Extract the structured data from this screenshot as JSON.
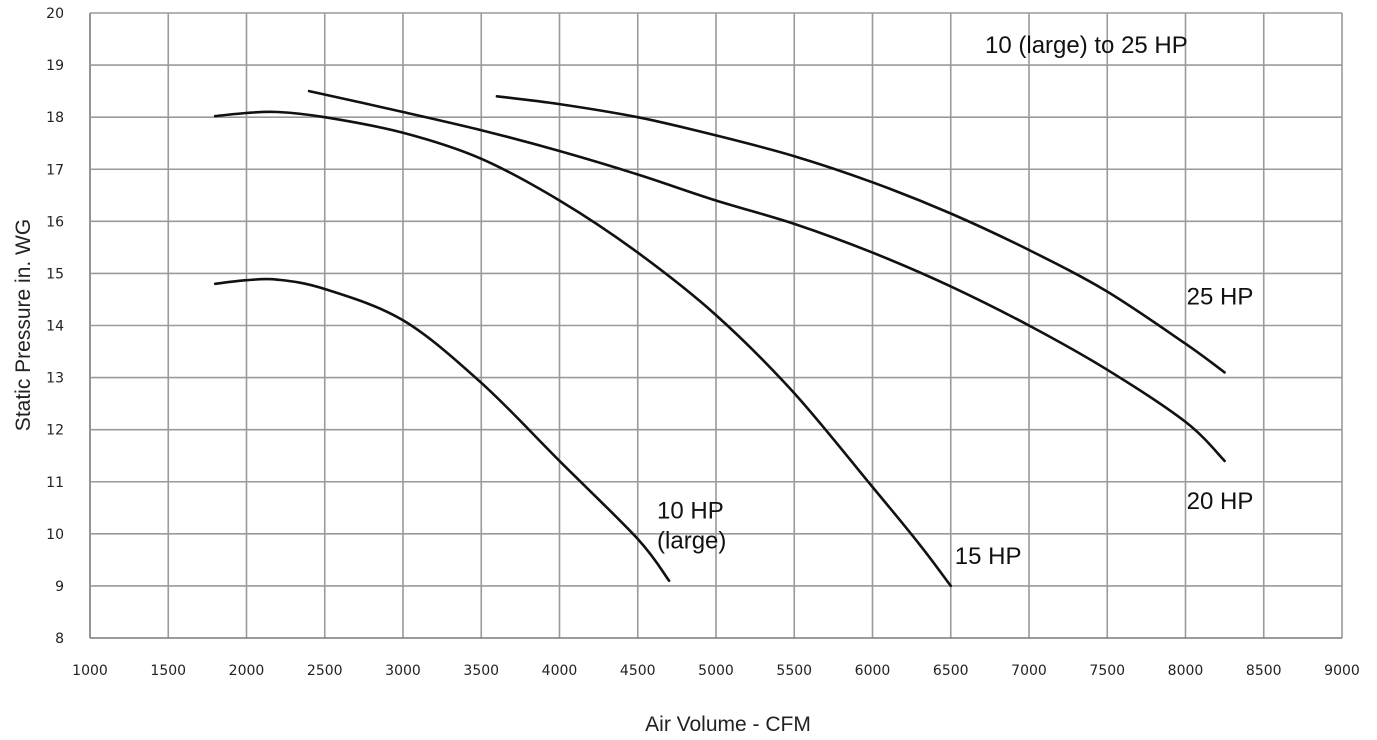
{
  "chart_data": {
    "type": "line",
    "title": "",
    "annotation": "10 (large) to 25 HP",
    "xlabel": "Air Volume - CFM",
    "ylabel": "Static Pressure in. WG",
    "xlim": [
      1000,
      9000
    ],
    "ylim": [
      8,
      20
    ],
    "x_ticks": [
      "1000",
      "1500",
      "2000",
      "2500",
      "3000",
      "3500",
      "4000",
      "4500",
      "5000",
      "5500",
      "6000",
      "6500",
      "7000",
      "7500",
      "8000",
      "8500",
      "9000"
    ],
    "y_ticks": [
      "8",
      "9",
      "10",
      "11",
      "12",
      "13",
      "14",
      "15",
      "16",
      "17",
      "18",
      "19",
      "20"
    ],
    "grid": true,
    "series": [
      {
        "name": "10 HP (large)",
        "label_lines": [
          "10 HP",
          "(large)"
        ],
        "points": [
          [
            1800,
            14.8
          ],
          [
            2000,
            14.87
          ],
          [
            2200,
            14.88
          ],
          [
            2500,
            14.7
          ],
          [
            3000,
            14.1
          ],
          [
            3500,
            12.9
          ],
          [
            4000,
            11.4
          ],
          [
            4500,
            9.9
          ],
          [
            4700,
            9.1
          ]
        ]
      },
      {
        "name": "15 HP",
        "label_lines": [
          "15 HP"
        ],
        "points": [
          [
            1800,
            18.02
          ],
          [
            2000,
            18.08
          ],
          [
            2200,
            18.1
          ],
          [
            2500,
            18.0
          ],
          [
            3000,
            17.7
          ],
          [
            3500,
            17.2
          ],
          [
            4000,
            16.4
          ],
          [
            4500,
            15.4
          ],
          [
            5000,
            14.2
          ],
          [
            5500,
            12.7
          ],
          [
            6000,
            10.9
          ],
          [
            6300,
            9.8
          ],
          [
            6500,
            9.0
          ]
        ]
      },
      {
        "name": "20 HP",
        "label_lines": [
          "20 HP"
        ],
        "points": [
          [
            2400,
            18.5
          ],
          [
            3000,
            18.1
          ],
          [
            3500,
            17.75
          ],
          [
            4000,
            17.35
          ],
          [
            4500,
            16.9
          ],
          [
            5000,
            16.4
          ],
          [
            5500,
            15.95
          ],
          [
            6000,
            15.4
          ],
          [
            6500,
            14.75
          ],
          [
            7000,
            14.0
          ],
          [
            7500,
            13.15
          ],
          [
            8000,
            12.15
          ],
          [
            8250,
            11.4
          ]
        ]
      },
      {
        "name": "25 HP",
        "label_lines": [
          "25 HP"
        ],
        "points": [
          [
            3600,
            18.4
          ],
          [
            4000,
            18.25
          ],
          [
            4500,
            18.0
          ],
          [
            5000,
            17.65
          ],
          [
            5500,
            17.25
          ],
          [
            6000,
            16.75
          ],
          [
            6500,
            16.15
          ],
          [
            7000,
            15.45
          ],
          [
            7500,
            14.65
          ],
          [
            8000,
            13.65
          ],
          [
            8250,
            13.1
          ]
        ]
      }
    ]
  }
}
